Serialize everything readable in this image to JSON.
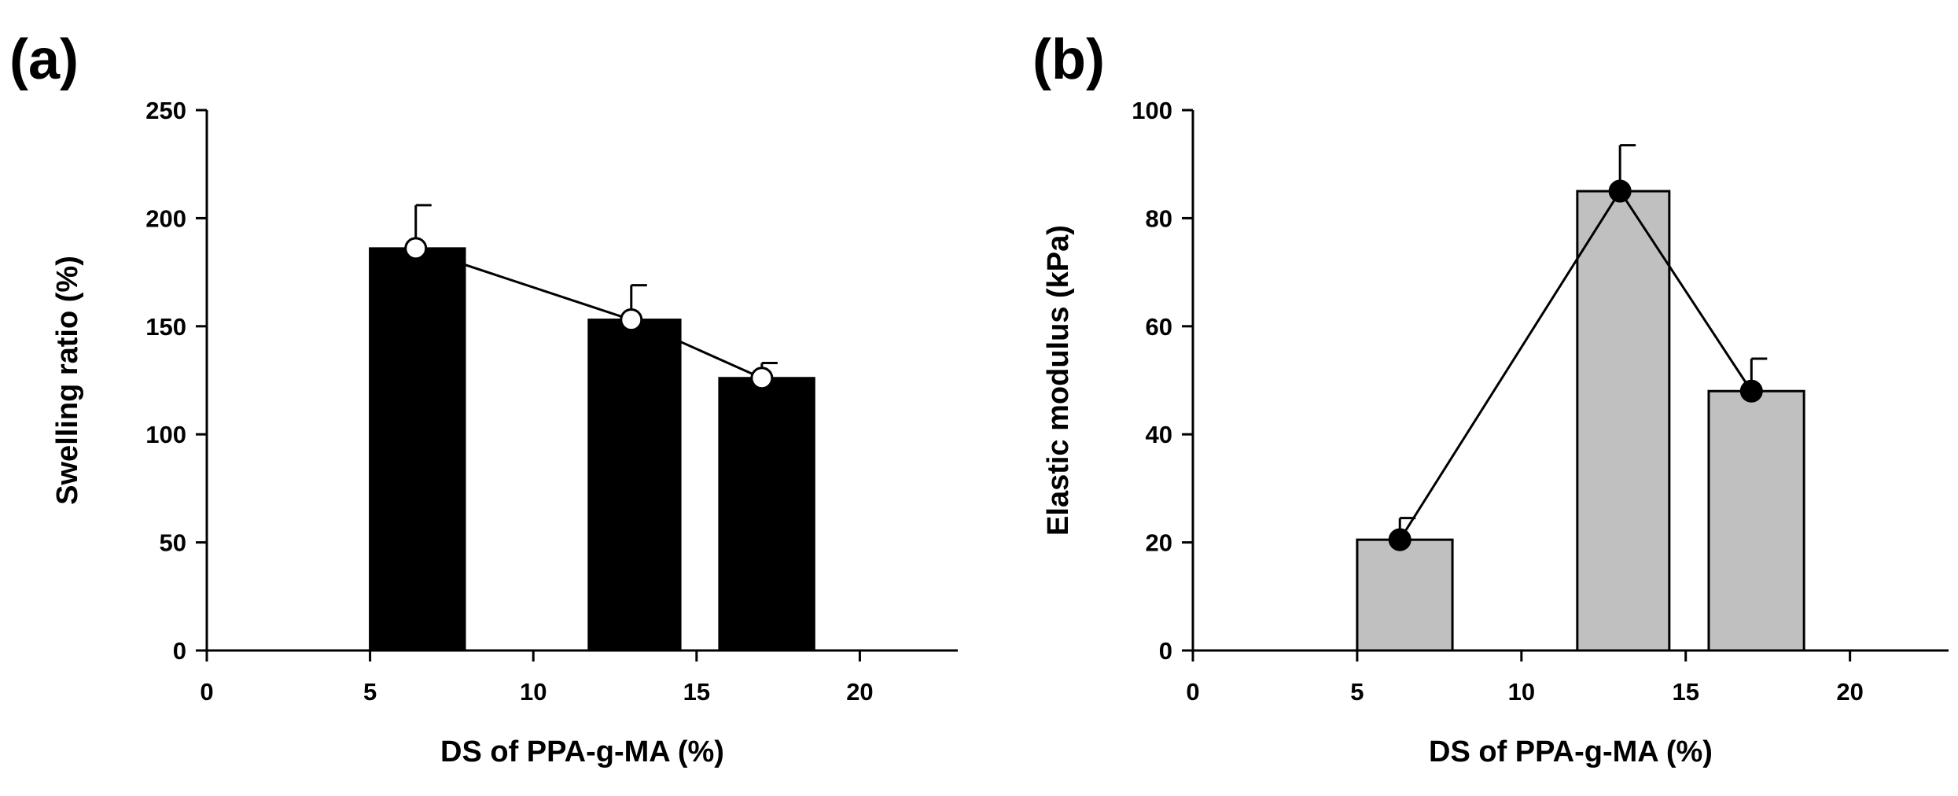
{
  "chart_data": [
    {
      "type": "bar",
      "panel_label": "(a)",
      "xlabel": "DS of PPA-g-MA (%)",
      "ylabel": "Swelling ratio (%)",
      "xlim": [
        0,
        23
      ],
      "ylim": [
        0,
        250
      ],
      "xticks": [
        0,
        5,
        10,
        15,
        20
      ],
      "yticks": [
        0,
        50,
        100,
        150,
        200,
        250
      ],
      "bar_color": "#000000",
      "marker_fill": "#ffffff",
      "bar_left_edges": [
        5,
        11.7,
        15.7
      ],
      "bar_right_edges": [
        7.9,
        14.5,
        18.6
      ],
      "x": [
        6.4,
        13.0,
        17.0
      ],
      "values": [
        186,
        153,
        126
      ],
      "errors": [
        20,
        16,
        7
      ],
      "line_connects_points": true
    },
    {
      "type": "bar",
      "panel_label": "(b)",
      "xlabel": "DS of PPA-g-MA (%)",
      "ylabel": "Elastic modulus (kPa)",
      "xlim": [
        0,
        23
      ],
      "ylim": [
        0,
        100
      ],
      "xticks": [
        0,
        5,
        10,
        15,
        20
      ],
      "yticks": [
        0,
        20,
        40,
        60,
        80,
        100
      ],
      "bar_color": "#c0c0c0",
      "marker_fill": "#000000",
      "bar_left_edges": [
        5,
        11.7,
        15.7
      ],
      "bar_right_edges": [
        7.9,
        14.5,
        18.6
      ],
      "x": [
        6.3,
        13.0,
        17.0
      ],
      "values": [
        20.5,
        85,
        48
      ],
      "errors": [
        4,
        8.5,
        6
      ],
      "line_connects_points": true
    }
  ]
}
